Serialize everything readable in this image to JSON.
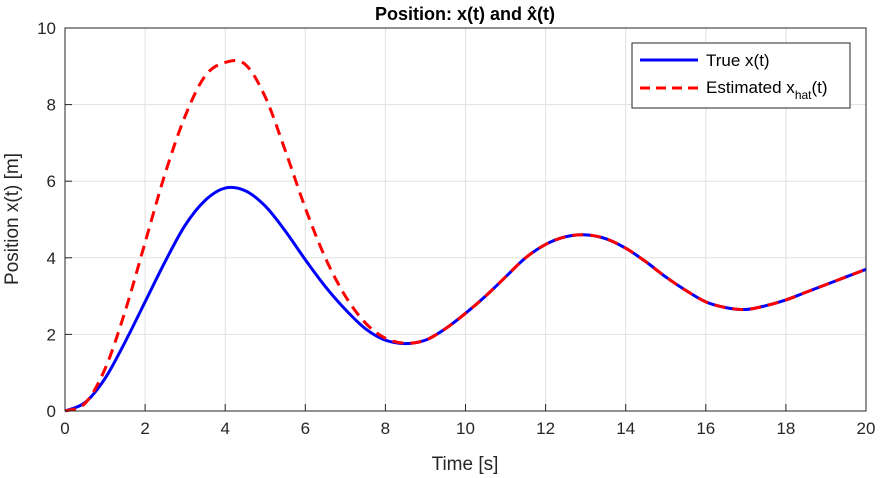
{
  "chart_data": {
    "type": "line",
    "title": "Position: x(t) and x̂(t)",
    "xlabel": "Time [s]",
    "ylabel": "Position x(t) [m]",
    "xlim": [
      0,
      20
    ],
    "ylim": [
      0,
      10
    ],
    "xticks": [
      "0",
      "2",
      "4",
      "6",
      "8",
      "10",
      "12",
      "14",
      "16",
      "18",
      "20"
    ],
    "yticks": [
      "0",
      "2",
      "4",
      "6",
      "8",
      "10"
    ],
    "grid": true,
    "legend_position": "top-right",
    "x": [
      0,
      0.5,
      1,
      1.5,
      2,
      2.5,
      3,
      3.5,
      4,
      4.5,
      5,
      5.5,
      6,
      6.5,
      7,
      7.5,
      8,
      8.5,
      9,
      9.5,
      10,
      10.5,
      11,
      11.5,
      12,
      12.5,
      13,
      13.5,
      14,
      14.5,
      15,
      15.5,
      16,
      16.5,
      17,
      17.5,
      18,
      18.5,
      19,
      19.5,
      20
    ],
    "series": [
      {
        "name": "True x(t)",
        "color": "#0000ff",
        "style": "solid",
        "values": [
          0,
          0.22,
          0.85,
          1.8,
          2.85,
          3.9,
          4.85,
          5.5,
          5.82,
          5.75,
          5.35,
          4.7,
          3.95,
          3.25,
          2.65,
          2.15,
          1.85,
          1.76,
          1.85,
          2.15,
          2.55,
          3.0,
          3.5,
          4.0,
          4.35,
          4.55,
          4.6,
          4.5,
          4.25,
          3.9,
          3.5,
          3.15,
          2.85,
          2.7,
          2.65,
          2.75,
          2.9,
          3.1,
          3.3,
          3.5,
          3.7
        ]
      },
      {
        "name": "Estimated x_hat(t)",
        "color": "#ff0000",
        "style": "dashed",
        "values": [
          0,
          0.2,
          1.1,
          2.6,
          4.4,
          6.2,
          7.7,
          8.75,
          9.1,
          9.05,
          8.2,
          6.8,
          5.3,
          4.0,
          3.0,
          2.3,
          1.9,
          1.77,
          1.85,
          2.15,
          2.55,
          3.0,
          3.5,
          4.0,
          4.35,
          4.55,
          4.6,
          4.5,
          4.25,
          3.9,
          3.5,
          3.15,
          2.85,
          2.7,
          2.65,
          2.75,
          2.9,
          3.1,
          3.3,
          3.5,
          3.7
        ]
      }
    ]
  },
  "legend": {
    "true_label": "True x(t)",
    "est_label_main": "Estimated x",
    "est_label_sub": "hat",
    "est_label_tail": "(t)"
  }
}
